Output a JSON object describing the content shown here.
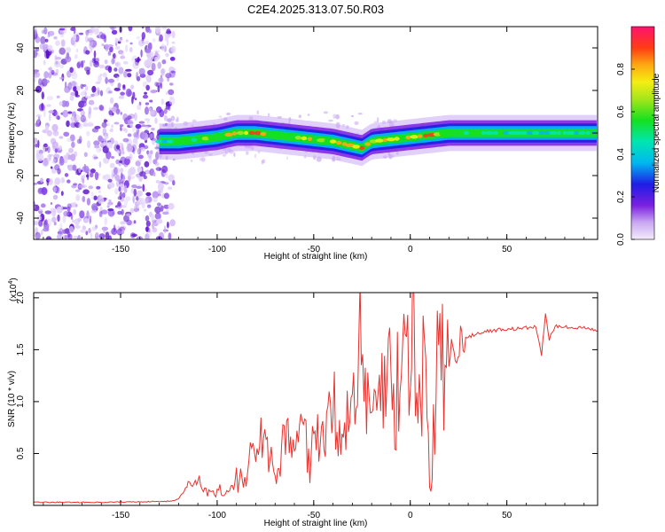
{
  "title": "C2E4.2025.313.07.50.R03",
  "chart_data": [
    {
      "type": "heatmap",
      "name": "spectrogram",
      "xlabel": "Height of straight line (km)",
      "ylabel": "Frequency (Hz)",
      "xlim": [
        -195,
        97
      ],
      "ylim": [
        -50,
        50
      ],
      "xticks": [
        -150,
        -100,
        -50,
        0,
        50
      ],
      "xtick_labels": [
        "-150",
        "-100",
        "-50",
        "0",
        "50"
      ],
      "yticks": [
        -40,
        -20,
        0,
        20,
        40
      ],
      "ytick_labels": [
        "-40",
        "-20",
        "0",
        "20",
        "40"
      ],
      "noise_region_x": [
        -195,
        -125
      ],
      "ridge": {
        "x": [
          -130,
          -120,
          -110,
          -100,
          -90,
          -80,
          -70,
          -60,
          -50,
          -40,
          -30,
          -25,
          -20,
          -10,
          0,
          10,
          20,
          40,
          60,
          80,
          97
        ],
        "freq": [
          -4,
          -4,
          -3,
          -2,
          0,
          0,
          -1,
          -2,
          -3,
          -4,
          -6,
          -7,
          -4,
          -3,
          -2,
          -1,
          0,
          0,
          0,
          0,
          0
        ],
        "amplitude": [
          0.55,
          0.6,
          0.65,
          0.7,
          0.85,
          0.9,
          0.75,
          0.7,
          0.8,
          0.85,
          0.9,
          0.95,
          0.85,
          0.9,
          0.8,
          0.95,
          0.7,
          0.55,
          0.5,
          0.5,
          0.45
        ]
      },
      "colorbar": {
        "label": "Normalized spectral amplitude",
        "range": [
          0,
          1
        ],
        "ticks": [
          0.0,
          0.2,
          0.4,
          0.6,
          0.8
        ],
        "tick_labels": [
          "0.0",
          "0.2",
          "0.4",
          "0.6",
          "0.8"
        ]
      }
    },
    {
      "type": "line",
      "name": "snr",
      "xlabel": "Height of straight line (km)",
      "ylabel": "SNR (10 * v/v)",
      "scale_label_main": "(x10",
      "scale_label_exp": "4",
      "scale_label_close": ")",
      "xlim": [
        -195,
        97
      ],
      "ylim": [
        0,
        2.05
      ],
      "xticks": [
        -150,
        -100,
        -50,
        0,
        50
      ],
      "xtick_labels": [
        "-150",
        "-100",
        "-50",
        "0",
        "50"
      ],
      "yticks": [
        0.5,
        1.0,
        1.5,
        2.0
      ],
      "ytick_labels": [
        "0.5",
        "1.0",
        "1.5",
        "2.0"
      ],
      "color": "#e8322e",
      "series": [
        {
          "name": "SNR",
          "x": [
            -195,
            -180,
            -160,
            -140,
            -125,
            -120,
            -117,
            -115,
            -112,
            -110,
            -105,
            -100,
            -95,
            -90,
            -85,
            -80,
            -76,
            -72,
            -68,
            -64,
            -60,
            -56,
            -52,
            -48,
            -44,
            -40,
            -36,
            -32,
            -28,
            -26,
            -24,
            -20,
            -16,
            -12,
            -8,
            -4,
            0,
            2,
            4,
            6,
            8,
            10,
            14,
            18,
            22,
            26,
            30,
            35,
            40,
            45,
            50,
            55,
            60,
            65,
            68,
            70,
            72,
            75,
            80,
            85,
            90,
            97
          ],
          "y": [
            0.03,
            0.03,
            0.03,
            0.035,
            0.04,
            0.06,
            0.15,
            0.2,
            0.17,
            0.28,
            0.1,
            0.12,
            0.15,
            0.25,
            0.35,
            0.6,
            0.75,
            0.4,
            0.5,
            0.65,
            0.45,
            0.7,
            0.55,
            0.8,
            0.6,
            0.9,
            0.7,
            0.85,
            1.0,
            1.65,
            0.9,
            1.15,
            0.95,
            1.25,
            1.1,
            1.3,
            1.35,
            1.9,
            0.6,
            1.2,
            2.05,
            0.05,
            1.4,
            1.3,
            1.5,
            1.58,
            1.62,
            1.66,
            1.68,
            1.69,
            1.7,
            1.7,
            1.71,
            1.72,
            1.45,
            1.85,
            1.6,
            1.72,
            1.73,
            1.7,
            1.72,
            1.68
          ]
        }
      ]
    }
  ]
}
